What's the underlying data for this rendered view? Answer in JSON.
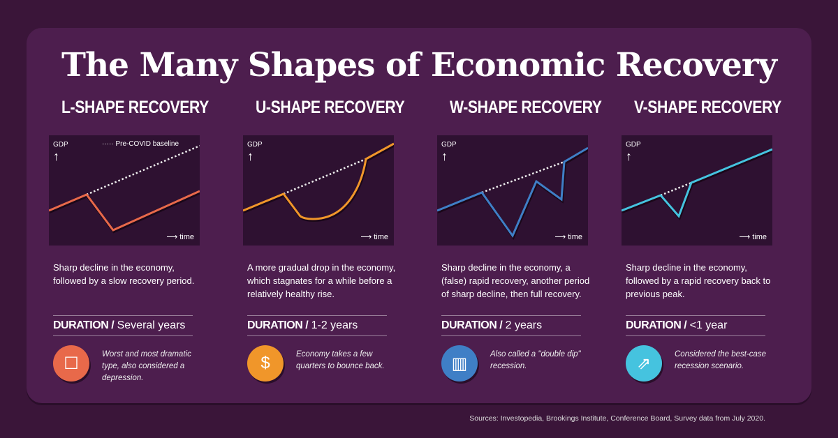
{
  "title": "The Many Shapes of Economic Recovery",
  "axis": {
    "y": "GDP",
    "x": "time",
    "baseline_legend": "Pre-COVID baseline"
  },
  "colors": {
    "l": "#e8694a",
    "u": "#f0962a",
    "w": "#3f7fc6",
    "v": "#45c3df"
  },
  "columns": [
    {
      "heading": "L-SHAPE RECOVERY",
      "description": "Sharp decline in the economy, followed by a slow recovery period.",
      "duration_label": "DURATION /",
      "duration": "Several years",
      "icon": "worker-holding-box-icon",
      "note": "Worst and most dramatic type, also considered a depression."
    },
    {
      "heading": "U-SHAPE RECOVERY",
      "description": "A more gradual drop in the economy, which stagnates for a while before a relatively healthy rise.",
      "duration_label": "DURATION /",
      "duration": "1-2 years",
      "icon": "declining-money-chart-icon",
      "note": "Economy takes a few quarters to bounce back."
    },
    {
      "heading": "W-SHAPE RECOVERY",
      "description": "Sharp decline in the economy, a (false) rapid recovery, another period of sharp decline, then full recovery.",
      "duration_label": "DURATION /",
      "duration": "2 years",
      "icon": "falling-bar-chart-icon",
      "note": "Also called a \"double dip\" recession."
    },
    {
      "heading": "V-SHAPE RECOVERY",
      "description": "Sharp decline in the economy, followed by a rapid recovery back to previous peak.",
      "duration_label": "DURATION /",
      "duration": "<1 year",
      "icon": "rising-people-chart-icon",
      "note": "Considered the best-case recession scenario."
    }
  ],
  "sources": "Sources: Investopedia, Brookings Institute, Conference Board, Survey data from July 2020."
}
